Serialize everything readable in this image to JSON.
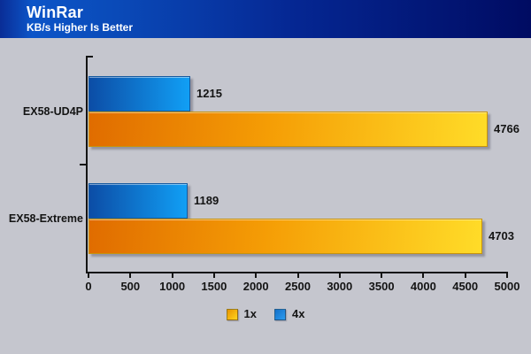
{
  "header": {
    "title": "WinRar",
    "subtitle": "KB/s Higher Is Better"
  },
  "chart_data": {
    "type": "bar",
    "orientation": "horizontal",
    "title": "WinRar",
    "subtitle": "KB/s Higher Is Better",
    "categories": [
      "EX58-UD4P",
      "EX58-Extreme"
    ],
    "series": [
      {
        "name": "1x",
        "values": [
          4766,
          4703
        ]
      },
      {
        "name": "4x",
        "values": [
          1215,
          1189
        ]
      }
    ],
    "xlim": [
      0,
      5000
    ],
    "xticks": [
      0,
      500,
      1000,
      1500,
      2000,
      2500,
      3000,
      3500,
      4000,
      4500,
      5000
    ],
    "grid": false,
    "value_labels": true,
    "legend_position": "bottom"
  },
  "legend": {
    "items": [
      {
        "label": "1x",
        "color_start": "#e89400",
        "color_end": "#ffd41c"
      },
      {
        "label": "4x",
        "color_start": "#1470c8",
        "color_end": "#2b9cf0"
      }
    ]
  },
  "colors": {
    "background": "#c5c6ce",
    "header_left": "#0c55c8",
    "header_right": "#000b62",
    "bar_1x_start": "#e06c00",
    "bar_1x_mid": "#f59d05",
    "bar_1x_end": "#ffdc28",
    "bar_4x_start": "#0c4da6",
    "bar_4x_end": "#119ff5",
    "axis": "#141414",
    "text": "#141414"
  }
}
